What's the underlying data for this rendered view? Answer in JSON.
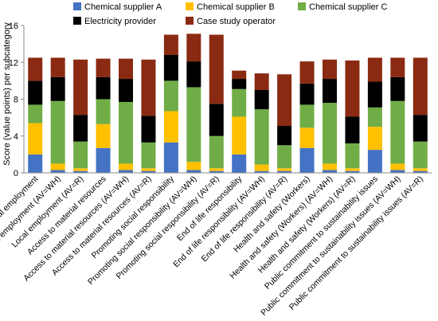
{
  "chart_data": {
    "type": "bar",
    "stacked": true,
    "ylabel": "Score (value points) per subcategory",
    "ylim": [
      0,
      16
    ],
    "yticks": [
      0,
      4,
      8,
      12,
      16
    ],
    "grid": false,
    "legend_position": "top",
    "categories": [
      "Local employment",
      "Local employment (AV=WH)",
      "Local employment (AV=R)",
      "Access to material resources",
      "Access to material resources (AV=WH)",
      "Access to material resources (AV=R)",
      "Promoting social responsibility",
      "Promoting social responsibility (AV=WH)",
      "Promoting social responsibility (AV=R)",
      "End of life responsibility",
      "End of life responsibility (AV=WH)",
      "End of life responsibility (AV=R)",
      "Health and safety (Workers)",
      "Health and safety (Workers) (AV=WH)",
      "Health and safety (Workers) (AV=R)",
      "Public commitment to sustainability issues",
      "Public commitment to sustainability issues (AV=WH)",
      "Public commitment to sustainability issues (AV=R)"
    ],
    "series": [
      {
        "name": "Chemical supplier A",
        "color": "#4472C4",
        "values": [
          2.0,
          0.3,
          0.2,
          2.7,
          0.3,
          0.2,
          3.3,
          0.3,
          0.2,
          2.0,
          0.2,
          0.2,
          2.7,
          0.3,
          0.2,
          2.5,
          0.3,
          0.2
        ]
      },
      {
        "name": "Chemical supplier B",
        "color": "#FFC000",
        "values": [
          3.4,
          0.7,
          0.3,
          2.6,
          0.7,
          0.3,
          3.4,
          0.9,
          0.3,
          4.1,
          0.7,
          0.3,
          2.2,
          0.7,
          0.3,
          2.5,
          0.7,
          0.3
        ]
      },
      {
        "name": "Chemical supplier C",
        "color": "#70AD47",
        "values": [
          2.0,
          6.8,
          2.9,
          2.7,
          6.7,
          2.8,
          3.3,
          8.1,
          3.5,
          3.0,
          6.0,
          2.5,
          2.5,
          6.6,
          2.7,
          2.1,
          6.8,
          2.9
        ]
      },
      {
        "name": "Electricity provider",
        "color": "#000000",
        "values": [
          2.6,
          2.6,
          2.9,
          2.4,
          2.5,
          2.9,
          2.8,
          2.8,
          3.5,
          1.1,
          2.1,
          2.1,
          2.3,
          2.6,
          2.9,
          2.8,
          2.6,
          2.9
        ]
      },
      {
        "name": "Case study operator",
        "color": "#8B2A12",
        "values": [
          2.5,
          2.1,
          6.0,
          2.0,
          2.2,
          6.1,
          2.2,
          3.0,
          7.5,
          0.9,
          1.8,
          5.6,
          2.4,
          2.1,
          6.1,
          2.6,
          2.1,
          6.2
        ]
      }
    ]
  }
}
